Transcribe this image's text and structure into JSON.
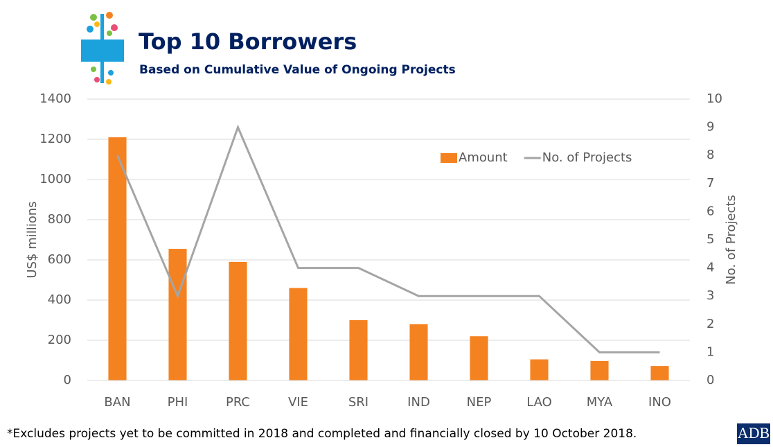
{
  "chart_data": {
    "type": "bar",
    "title": "Top 10 Borrowers",
    "subtitle": "Based on Cumulative Value of Ongoing Projects",
    "ylabel": "US$ millions",
    "y2label": "No. of Projects",
    "categories": [
      "BAN",
      "PHI",
      "PRC",
      "VIE",
      "SRI",
      "IND",
      "NEP",
      "LAO",
      "MYA",
      "INO"
    ],
    "series": [
      {
        "name": "Amount",
        "type": "bar",
        "color": "#f58220",
        "values": [
          1210,
          655,
          590,
          460,
          300,
          280,
          220,
          105,
          97,
          72
        ]
      },
      {
        "name": "No. of Projects",
        "type": "line",
        "axis": "y2",
        "color": "#a5a5a5",
        "values": [
          8,
          3,
          9,
          4,
          4,
          3,
          3,
          3,
          1,
          1
        ]
      }
    ],
    "ylim": [
      0,
      1400
    ],
    "yticks": [
      0,
      200,
      400,
      600,
      800,
      1000,
      1200,
      1400
    ],
    "y2lim": [
      0,
      10
    ],
    "y2ticks": [
      0,
      1,
      2,
      3,
      4,
      5,
      6,
      7,
      8,
      9,
      10
    ],
    "grid": true,
    "legend": "upper right",
    "footnote": "*Excludes projects yet to be committed in 2018 and completed and financially closed by 10 October 2018."
  },
  "logo": "ADB"
}
